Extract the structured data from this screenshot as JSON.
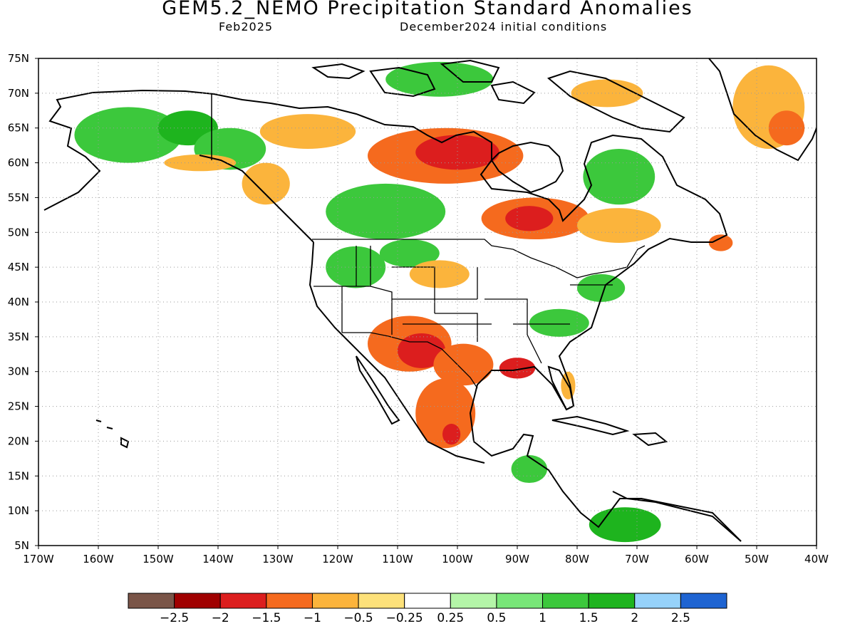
{
  "header": {
    "title": "GEM5.2_NEMO Precipitation Standard Anomalies",
    "valid_month": "Feb2025",
    "initial_conditions": "December2024 initial conditions"
  },
  "axes": {
    "lat_labels": [
      "75N",
      "70N",
      "65N",
      "60N",
      "55N",
      "50N",
      "45N",
      "40N",
      "35N",
      "30N",
      "25N",
      "20N",
      "15N",
      "10N",
      "5N"
    ],
    "lat_values": [
      75,
      70,
      65,
      60,
      55,
      50,
      45,
      40,
      35,
      30,
      25,
      20,
      15,
      10,
      5
    ],
    "lon_labels": [
      "170W",
      "160W",
      "150W",
      "140W",
      "130W",
      "120W",
      "110W",
      "100W",
      "90W",
      "80W",
      "70W",
      "60W",
      "50W",
      "40W"
    ],
    "lon_values": [
      -170,
      -160,
      -150,
      -140,
      -130,
      -120,
      -110,
      -100,
      -90,
      -80,
      -70,
      -60,
      -50,
      -40
    ],
    "lat_range": [
      5,
      75
    ],
    "lon_range": [
      -170,
      -40
    ],
    "grid": "dotted"
  },
  "colorbar": {
    "colors": [
      "#7a5548",
      "#a00000",
      "#dc1e1e",
      "#f56a1e",
      "#fbb43c",
      "#fde17a",
      "#ffffff",
      "#b4f5a8",
      "#78e678",
      "#3cc83c",
      "#1eb41e",
      "#96d2fa",
      "#1e64d2"
    ],
    "labels": [
      "−2.5",
      "−2",
      "−1.5",
      "−1",
      "−0.5",
      "−0.25",
      "0.25",
      "0.5",
      "1",
      "1.5",
      "2",
      "2.5"
    ]
  },
  "anomaly_regions": [
    {
      "name": "alaska-west",
      "value": 1.0,
      "lon": -155,
      "lat": 64,
      "rx": 9,
      "ry": 4
    },
    {
      "name": "alaska-interior",
      "value": 1.5,
      "lon": -145,
      "lat": 65,
      "rx": 5,
      "ry": 2.5
    },
    {
      "name": "yukon",
      "value": 1.0,
      "lon": -138,
      "lat": 62,
      "rx": 6,
      "ry": 3
    },
    {
      "name": "nw-territories",
      "value": -1.0,
      "lon": -125,
      "lat": 64.5,
      "rx": 8,
      "ry": 2.5
    },
    {
      "name": "bc-coast",
      "value": -1.0,
      "lon": -132,
      "lat": 57,
      "rx": 4,
      "ry": 3
    },
    {
      "name": "alaska-south-coast",
      "value": -1.0,
      "lon": -143,
      "lat": 60,
      "rx": 6,
      "ry": 1.2
    },
    {
      "name": "prairies",
      "value": 1.0,
      "lon": -112,
      "lat": 53,
      "rx": 10,
      "ry": 4
    },
    {
      "name": "canadian-arctic",
      "value": 1.0,
      "lon": -103,
      "lat": 72,
      "rx": 9,
      "ry": 2.5
    },
    {
      "name": "hudson-west",
      "value": -1.5,
      "lon": -102,
      "lat": 61,
      "rx": 13,
      "ry": 4
    },
    {
      "name": "hudson-west-core",
      "value": -2.0,
      "lon": -100,
      "lat": 61.5,
      "rx": 7,
      "ry": 2.5
    },
    {
      "name": "ontario-north",
      "value": -1.5,
      "lon": -87,
      "lat": 52,
      "rx": 9,
      "ry": 3
    },
    {
      "name": "ontario-north-core",
      "value": -2.0,
      "lon": -88,
      "lat": 52,
      "rx": 4,
      "ry": 1.8
    },
    {
      "name": "quebec-north",
      "value": 1.0,
      "lon": -73,
      "lat": 58,
      "rx": 6,
      "ry": 4
    },
    {
      "name": "quebec-south",
      "value": -1.0,
      "lon": -73,
      "lat": 51,
      "rx": 7,
      "ry": 2.5
    },
    {
      "name": "newfoundland",
      "value": -1.5,
      "lon": -56,
      "lat": 48.5,
      "rx": 2,
      "ry": 1.2
    },
    {
      "name": "pacific-northwest",
      "value": 1.0,
      "lon": -117,
      "lat": 45,
      "rx": 5,
      "ry": 3
    },
    {
      "name": "montana",
      "value": 1.0,
      "lon": -108,
      "lat": 47,
      "rx": 5,
      "ry": 2
    },
    {
      "name": "great-plains-north",
      "value": -1.0,
      "lon": -103,
      "lat": 44,
      "rx": 5,
      "ry": 2
    },
    {
      "name": "southwest-us",
      "value": -1.5,
      "lon": -108,
      "lat": 34,
      "rx": 7,
      "ry": 4
    },
    {
      "name": "southwest-core",
      "value": -2.0,
      "lon": -106,
      "lat": 33,
      "rx": 4,
      "ry": 2.5
    },
    {
      "name": "texas",
      "value": -1.5,
      "lon": -99,
      "lat": 31,
      "rx": 5,
      "ry": 3
    },
    {
      "name": "gulf-coast",
      "value": -2.0,
      "lon": -90,
      "lat": 30.5,
      "rx": 3,
      "ry": 1.5
    },
    {
      "name": "mexico",
      "value": -1.5,
      "lon": -102,
      "lat": 24,
      "rx": 5,
      "ry": 5
    },
    {
      "name": "mexico-core",
      "value": -2.0,
      "lon": -101,
      "lat": 21,
      "rx": 1.5,
      "ry": 1.5
    },
    {
      "name": "ohio-valley",
      "value": 1.0,
      "lon": -83,
      "lat": 37,
      "rx": 5,
      "ry": 2
    },
    {
      "name": "northeast-us",
      "value": 1.0,
      "lon": -76,
      "lat": 42,
      "rx": 4,
      "ry": 2
    },
    {
      "name": "florida",
      "value": -1.0,
      "lon": -81.5,
      "lat": 28,
      "rx": 1.2,
      "ry": 2
    },
    {
      "name": "central-america",
      "value": 1.0,
      "lon": -88,
      "lat": 16,
      "rx": 3,
      "ry": 2
    },
    {
      "name": "northern-south-america",
      "value": 1.5,
      "lon": -72,
      "lat": 8,
      "rx": 6,
      "ry": 2.5
    },
    {
      "name": "greenland",
      "value": -1.0,
      "lon": -48,
      "lat": 68,
      "rx": 6,
      "ry": 6
    },
    {
      "name": "greenland-core",
      "value": -1.5,
      "lon": -45,
      "lat": 65,
      "rx": 3,
      "ry": 2.5
    },
    {
      "name": "baffin-island",
      "value": -1.0,
      "lon": -75,
      "lat": 70,
      "rx": 6,
      "ry": 2
    }
  ]
}
